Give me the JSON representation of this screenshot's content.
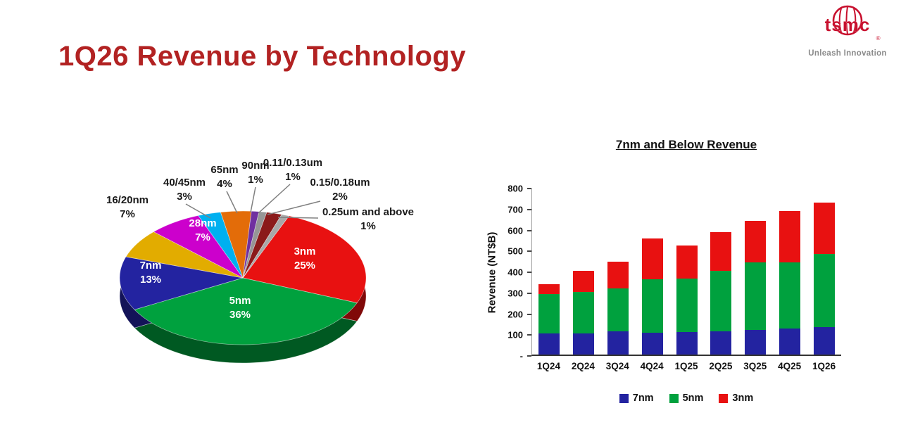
{
  "page": {
    "title": "1Q26 Revenue by Technology",
    "title_color": "#B22222",
    "logo_text": "tsmc",
    "logo_reg": "®",
    "logo_tagline": "Unleash Innovation",
    "logo_color": "#C8102E"
  },
  "chart_data": [
    {
      "type": "pie",
      "name": "revenue-by-technology-pie",
      "unit": "percent",
      "slices": [
        {
          "label": "3nm",
          "pct": "25%",
          "value": 25,
          "color": "#E81111"
        },
        {
          "label": "5nm",
          "pct": "36%",
          "value": 36,
          "color": "#00A13E"
        },
        {
          "label": "7nm",
          "pct": "13%",
          "value": 13,
          "color": "#2323A0"
        },
        {
          "label": "16/20nm",
          "pct": "7%",
          "value": 7,
          "color": "#E2AC00"
        },
        {
          "label": "28nm",
          "pct": "7%",
          "value": 7,
          "color": "#CC00CC"
        },
        {
          "label": "40/45nm",
          "pct": "3%",
          "value": 3,
          "color": "#00B0F0"
        },
        {
          "label": "65nm",
          "pct": "4%",
          "value": 4,
          "color": "#E36C09"
        },
        {
          "label": "90nm",
          "pct": "1%",
          "value": 1,
          "color": "#7030A0"
        },
        {
          "label": "0.11/0.13um",
          "pct": "1%",
          "value": 1,
          "color": "#969696"
        },
        {
          "label": "0.15/0.18um",
          "pct": "2%",
          "value": 2,
          "color": "#8B1A1A"
        },
        {
          "label": "0.25um and above",
          "pct": "1%",
          "value": 1,
          "color": "#A8A8A8"
        }
      ]
    },
    {
      "type": "stacked-bar",
      "title": "7nm and Below Revenue",
      "ylabel": "Revenue (NT$B)",
      "ylim": [
        0,
        800
      ],
      "yticks": [
        "800",
        "700",
        "600",
        "500",
        "400",
        "300",
        "200",
        "100",
        "-"
      ],
      "categories": [
        "1Q24",
        "2Q24",
        "3Q24",
        "4Q24",
        "1Q25",
        "2Q25",
        "3Q25",
        "4Q25",
        "1Q26"
      ],
      "series": [
        {
          "name": "7nm",
          "color": "#2323A0",
          "values": [
            100,
            100,
            110,
            105,
            107,
            110,
            118,
            125,
            130
          ]
        },
        {
          "name": "5nm",
          "color": "#00A13E",
          "values": [
            190,
            200,
            205,
            255,
            255,
            290,
            322,
            315,
            350
          ]
        },
        {
          "name": "3nm",
          "color": "#E81111",
          "values": [
            45,
            100,
            130,
            195,
            158,
            185,
            200,
            245,
            245
          ]
        }
      ]
    }
  ]
}
